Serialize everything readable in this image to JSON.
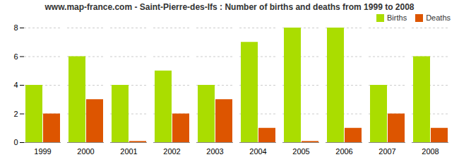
{
  "chart_data": {
    "type": "bar",
    "title": "www.map-france.com - Saint-Pierre-des-Ifs : Number of births and deaths from 1999 to 2008",
    "categories": [
      "1999",
      "2000",
      "2001",
      "2002",
      "2003",
      "2004",
      "2005",
      "2006",
      "2007",
      "2008"
    ],
    "series": [
      {
        "name": "Births",
        "color": "#aadd00",
        "values": [
          4,
          6,
          4,
          5,
          4,
          7,
          8,
          8,
          4,
          6
        ]
      },
      {
        "name": "Deaths",
        "color": "#dd5500",
        "values": [
          2,
          3,
          0.08,
          2,
          3,
          1,
          0.08,
          1,
          2,
          1
        ]
      }
    ],
    "ylim": [
      0,
      8
    ],
    "yticks": [
      0,
      2,
      4,
      6,
      8
    ],
    "grid": true,
    "legend": "upper right"
  }
}
